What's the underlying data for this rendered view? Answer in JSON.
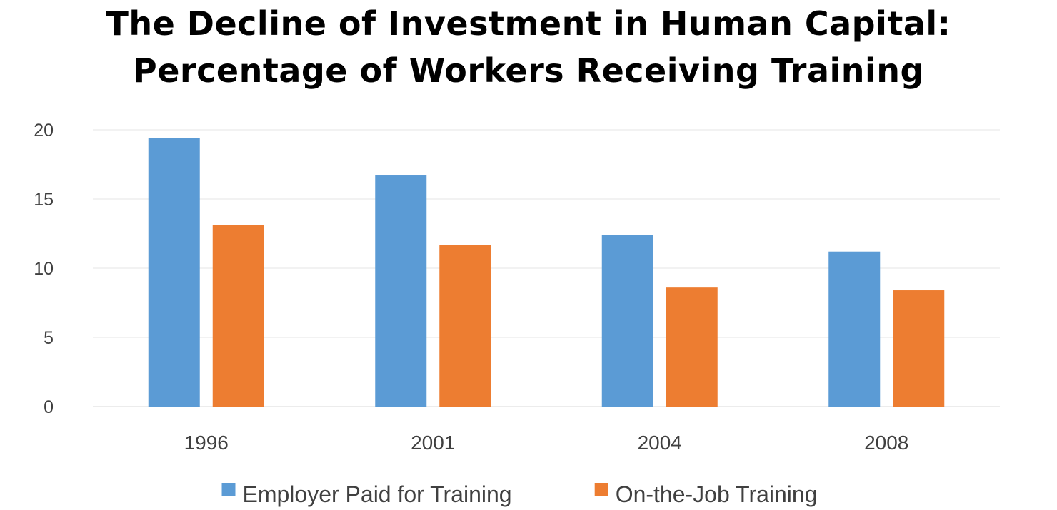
{
  "chart_data": {
    "type": "bar",
    "title_line1": "The Decline of Investment in Human Capital:",
    "title_line2": "Percentage of Workers Receiving Training",
    "categories": [
      "1996",
      "2001",
      "2004",
      "2008"
    ],
    "series": [
      {
        "name": "Employer Paid for Training",
        "values": [
          19.4,
          16.7,
          12.4,
          11.2
        ],
        "color": "#5B9BD5"
      },
      {
        "name": "On-the-Job Training",
        "values": [
          13.1,
          11.7,
          8.6,
          8.4
        ],
        "color": "#ED7D31"
      }
    ],
    "ylim": [
      0,
      20
    ],
    "yticks": [
      "0",
      "5",
      "10",
      "15",
      "20"
    ],
    "grid": true,
    "legend_position": "bottom"
  }
}
